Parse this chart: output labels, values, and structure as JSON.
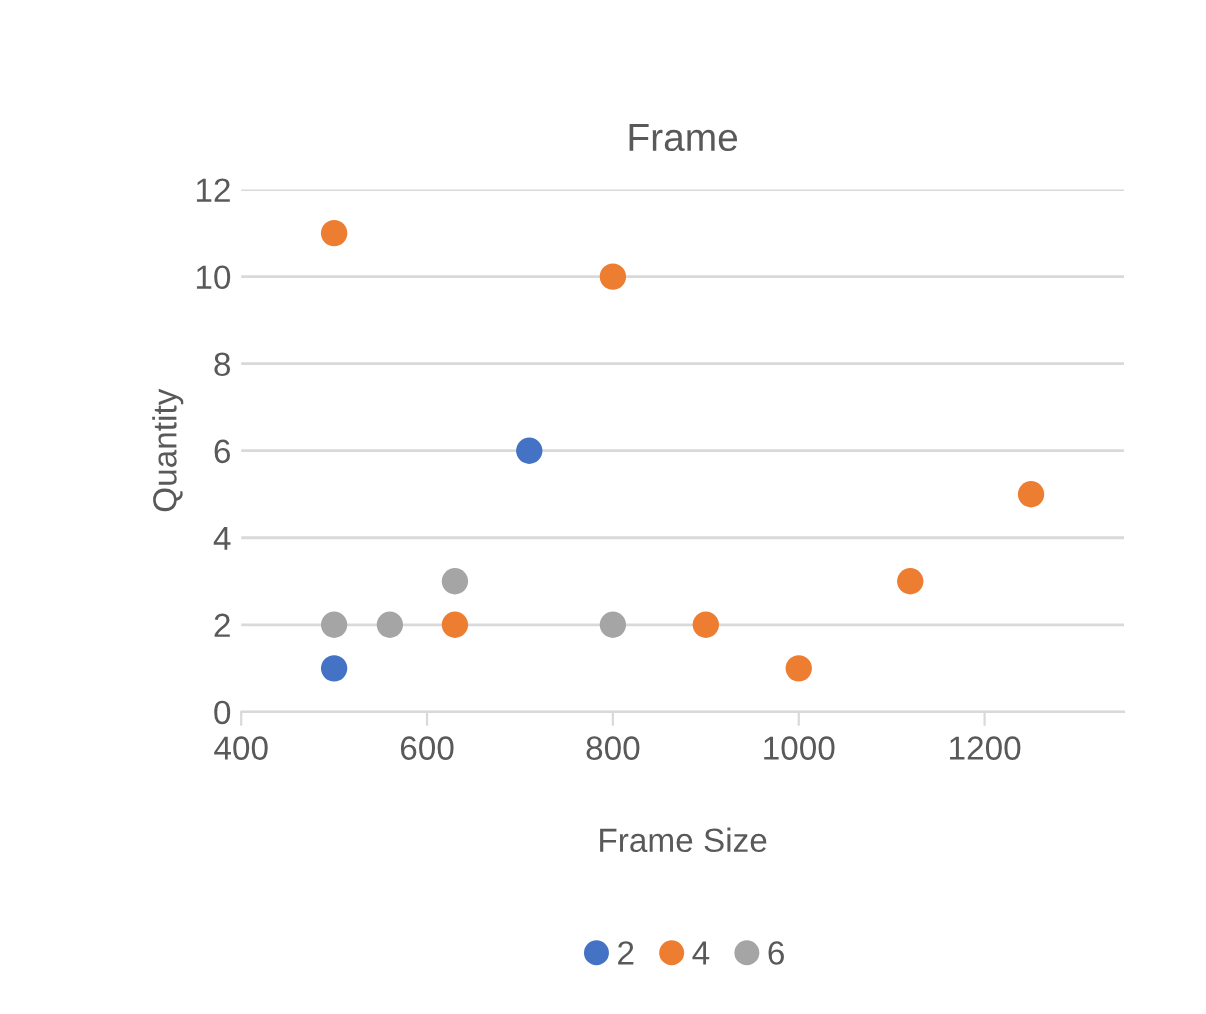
{
  "chart_data": {
    "type": "scatter",
    "title": "Frame",
    "xlabel": "Frame Size",
    "ylabel": "Quantity",
    "xlim": [
      400,
      1350
    ],
    "xticks": [
      400,
      600,
      800,
      1000,
      1200
    ],
    "ylim": [
      0,
      12
    ],
    "yticks": [
      0,
      2,
      4,
      6,
      8,
      10,
      12
    ],
    "grid": "y",
    "legend": "bottom",
    "marker": "circle",
    "series": [
      {
        "name": "2",
        "color": "#4472c4",
        "x": [
          500,
          710
        ],
        "values": [
          1,
          6
        ]
      },
      {
        "name": "4",
        "color": "#ed7d31",
        "x": [
          500,
          800,
          630,
          900,
          1000,
          1120,
          1250
        ],
        "values": [
          11,
          10,
          2,
          2,
          1,
          3,
          5
        ]
      },
      {
        "name": "6",
        "color": "#a5a5a5",
        "x": [
          500,
          560,
          630,
          800
        ],
        "values": [
          2,
          2,
          3,
          2
        ]
      }
    ]
  }
}
